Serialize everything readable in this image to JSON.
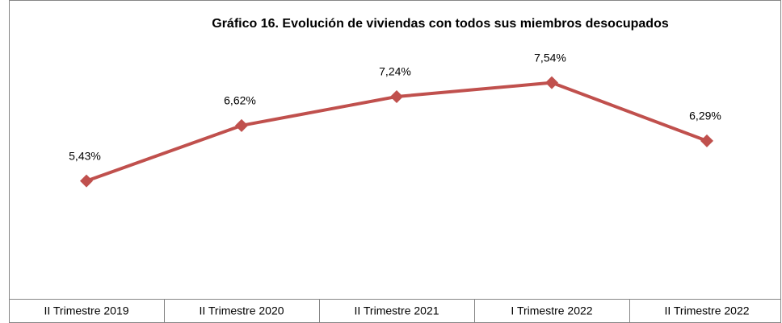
{
  "chart_data": {
    "type": "line",
    "title": "Gráfico 16. Evolución de viviendas con todos sus miembros desocupados",
    "categories": [
      "II Trimestre 2019",
      "II Trimestre 2020",
      "II Trimestre 2021",
      "I Trimestre 2022",
      "II Trimestre 2022"
    ],
    "series": [
      {
        "color": "#c0504d",
        "values": [
          5.43,
          6.62,
          7.24,
          7.54,
          6.29
        ],
        "value_labels": [
          "5,43%",
          "6,62%",
          "7,24%",
          "7,54%",
          "6,29%"
        ]
      }
    ],
    "ylim": [
      2.9,
      8.0
    ]
  }
}
